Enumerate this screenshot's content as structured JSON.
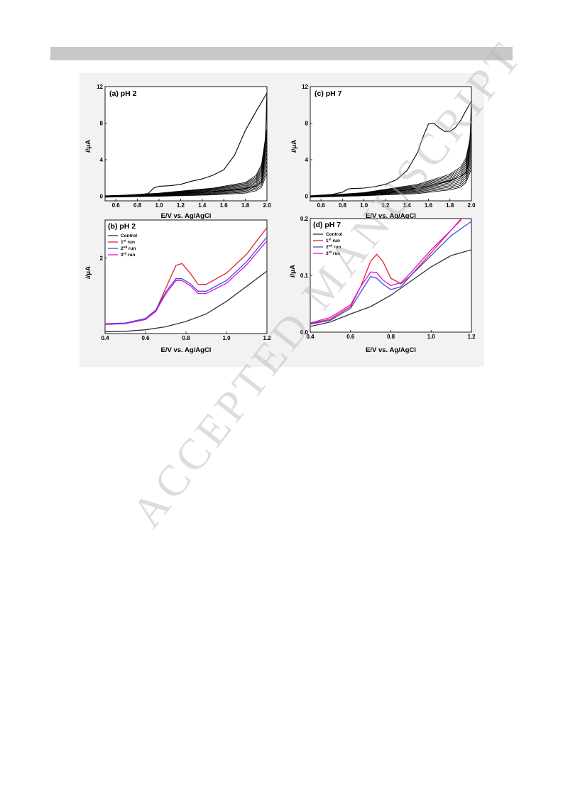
{
  "watermark": "ACCEPTED MANUSCRIPT",
  "colors": {
    "header_bar": "#c8c8c8",
    "control": "#333333",
    "run1": "#e8202a",
    "run2": "#3a4fe0",
    "run3": "#e010e0",
    "cv": "#000000"
  },
  "chart_data": [
    {
      "id": "a",
      "type": "line",
      "title": "(a) pH 2",
      "xlabel": "E/V vs. Ag/AgCl",
      "ylabel": "i/μA",
      "xlim": [
        0.5,
        2.0
      ],
      "ylim": [
        -0.5,
        12
      ],
      "xticks": [
        0.6,
        0.8,
        1.0,
        1.2,
        1.4,
        1.6,
        1.8,
        2.0
      ],
      "xtick_labels": [
        "0.6",
        "0.8",
        "1.0",
        "1.2",
        "1.4",
        "1.6",
        "1.8",
        "2.0"
      ],
      "yticks": [
        0,
        4,
        8,
        12
      ],
      "ytick_labels": [
        "0",
        "4",
        "8",
        "12"
      ],
      "series": [
        {
          "role": "first-scan-anodic",
          "x": [
            0.5,
            0.8,
            0.9,
            0.95,
            1.0,
            1.1,
            1.2,
            1.3,
            1.4,
            1.5,
            1.6,
            1.7,
            1.8,
            1.9,
            2.0
          ],
          "y": [
            0.05,
            0.15,
            0.3,
            0.9,
            1.1,
            1.15,
            1.3,
            1.65,
            1.9,
            2.3,
            2.9,
            4.5,
            7.2,
            9.3,
            11.3
          ]
        },
        {
          "role": "first-scan-return",
          "x": [
            2.0,
            1.99,
            1.97,
            1.95,
            1.9,
            1.8,
            1.6,
            1.4,
            1.2,
            1.0,
            0.8,
            0.5
          ],
          "y": [
            11.3,
            7.5,
            3.0,
            1.6,
            1.1,
            0.85,
            0.6,
            0.45,
            0.35,
            0.25,
            0.15,
            0.0
          ]
        },
        {
          "role": "repeated-scans-envelope-upper",
          "x": [
            0.5,
            1.0,
            1.5,
            1.8,
            1.9,
            1.95,
            2.0
          ],
          "y": [
            0.0,
            0.35,
            0.9,
            1.5,
            2.3,
            3.5,
            7.5
          ]
        },
        {
          "role": "repeated-scans-envelope-lower",
          "x": [
            0.5,
            1.0,
            1.5,
            1.8,
            1.9,
            1.95,
            2.0
          ],
          "y": [
            -0.1,
            0.0,
            0.15,
            0.35,
            0.6,
            1.0,
            2.5
          ]
        }
      ],
      "repeated_scans": 12
    },
    {
      "id": "c",
      "type": "line",
      "title": "(c) pH 7",
      "xlabel": "E/V vs. Ag/AgCl",
      "ylabel": "i/μA",
      "xlim": [
        0.5,
        2.0
      ],
      "ylim": [
        -0.5,
        12
      ],
      "xticks": [
        0.6,
        0.8,
        1.0,
        1.2,
        1.4,
        1.6,
        1.8,
        2.0
      ],
      "xtick_labels": [
        "0.6",
        "0.8",
        "1.0",
        "1.2",
        "1.4",
        "1.6",
        "1.8",
        "2.0"
      ],
      "yticks": [
        0,
        4,
        8,
        12
      ],
      "ytick_labels": [
        "0",
        "4",
        "8",
        "12"
      ],
      "series": [
        {
          "role": "first-scan-anodic",
          "x": [
            0.5,
            0.7,
            0.8,
            0.85,
            0.9,
            1.0,
            1.1,
            1.2,
            1.3,
            1.4,
            1.5,
            1.55,
            1.6,
            1.65,
            1.7,
            1.75,
            1.8,
            1.85,
            1.9,
            1.95,
            2.0
          ],
          "y": [
            0.05,
            0.2,
            0.45,
            0.8,
            0.85,
            0.9,
            1.05,
            1.3,
            1.8,
            2.8,
            4.8,
            6.5,
            7.9,
            8.0,
            7.5,
            7.1,
            7.1,
            7.5,
            8.3,
            9.4,
            10.4
          ]
        },
        {
          "role": "first-scan-return",
          "x": [
            2.0,
            1.99,
            1.97,
            1.95,
            1.9,
            1.8,
            1.6,
            1.4,
            1.2,
            1.0,
            0.8,
            0.5
          ],
          "y": [
            10.4,
            7.0,
            3.5,
            2.6,
            2.2,
            1.7,
            1.1,
            0.7,
            0.45,
            0.3,
            0.15,
            0.0
          ]
        },
        {
          "role": "repeated-scans-envelope-upper",
          "x": [
            0.5,
            1.0,
            1.5,
            1.8,
            1.9,
            1.95,
            2.0
          ],
          "y": [
            0.0,
            0.4,
            1.3,
            2.4,
            3.2,
            4.2,
            7.0
          ]
        },
        {
          "role": "repeated-scans-envelope-lower",
          "x": [
            0.5,
            1.0,
            1.5,
            1.8,
            1.9,
            1.95,
            2.0
          ],
          "y": [
            -0.1,
            0.05,
            0.3,
            0.7,
            1.0,
            1.5,
            3.0
          ]
        }
      ],
      "repeated_scans": 12
    },
    {
      "id": "b",
      "type": "line",
      "title": "(b) pH 2",
      "xlabel": "E/V vs. Ag/AgCl",
      "ylabel": "i/μA",
      "xlim": [
        0.4,
        1.2
      ],
      "ylim": [
        0,
        3
      ],
      "xticks": [
        0.4,
        0.6,
        0.8,
        1.0,
        1.2
      ],
      "xtick_labels": [
        "0.4",
        "0.6",
        "0.8",
        "1.0",
        "1.2"
      ],
      "yticks": [
        2
      ],
      "ytick_labels": [
        "2"
      ],
      "legend": {
        "position": "top-left",
        "entries": [
          {
            "label": "Control",
            "sup": ""
          },
          {
            "label": "1",
            "sup": "st",
            "suffix": " run"
          },
          {
            "label": "2",
            "sup": "nd",
            "suffix": " run"
          },
          {
            "label": "3",
            "sup": "rd",
            "suffix": " run"
          }
        ]
      },
      "series": [
        {
          "name": "Control",
          "x": [
            0.4,
            0.5,
            0.6,
            0.7,
            0.8,
            0.9,
            1.0,
            1.1,
            1.2
          ],
          "y": [
            0.05,
            0.06,
            0.1,
            0.18,
            0.32,
            0.52,
            0.85,
            1.25,
            1.65
          ]
        },
        {
          "name": "1st run",
          "x": [
            0.4,
            0.5,
            0.6,
            0.65,
            0.7,
            0.75,
            0.78,
            0.82,
            0.86,
            0.9,
            1.0,
            1.1,
            1.2
          ],
          "y": [
            0.25,
            0.27,
            0.38,
            0.6,
            1.2,
            1.8,
            1.85,
            1.6,
            1.3,
            1.3,
            1.6,
            2.1,
            2.8
          ]
        },
        {
          "name": "2nd run",
          "x": [
            0.4,
            0.5,
            0.6,
            0.65,
            0.7,
            0.75,
            0.78,
            0.82,
            0.86,
            0.9,
            1.0,
            1.1,
            1.2
          ],
          "y": [
            0.26,
            0.28,
            0.4,
            0.62,
            1.1,
            1.45,
            1.45,
            1.32,
            1.12,
            1.12,
            1.4,
            1.9,
            2.55
          ]
        },
        {
          "name": "3rd run",
          "x": [
            0.4,
            0.5,
            0.6,
            0.65,
            0.7,
            0.75,
            0.78,
            0.82,
            0.86,
            0.9,
            1.0,
            1.1,
            1.2
          ],
          "y": [
            0.24,
            0.26,
            0.37,
            0.58,
            1.05,
            1.4,
            1.4,
            1.27,
            1.06,
            1.06,
            1.33,
            1.82,
            2.45
          ]
        }
      ]
    },
    {
      "id": "d",
      "type": "line",
      "title": "(d) pH 7",
      "xlabel": "E/V vs. Ag/AgCl",
      "ylabel": "i/μA",
      "xlim": [
        0.4,
        1.2
      ],
      "ylim": [
        0,
        0.2
      ],
      "xticks": [
        0.4,
        0.6,
        0.8,
        1.0,
        1.2
      ],
      "xtick_labels": [
        "0.4",
        "0.6",
        "0.8",
        "1.0",
        "1.2"
      ],
      "yticks": [
        0.0,
        0.1,
        0.2
      ],
      "ytick_labels": [
        "0.0",
        "0.1",
        "0.2"
      ],
      "legend": {
        "position": "top-left",
        "entries": [
          {
            "label": "Control",
            "sup": ""
          },
          {
            "label": "1",
            "sup": "st",
            "suffix": " run"
          },
          {
            "label": "2",
            "sup": "nd",
            "suffix": " run"
          },
          {
            "label": "3",
            "sup": "rd",
            "suffix": " run"
          }
        ]
      },
      "series": [
        {
          "name": "Control",
          "x": [
            0.4,
            0.5,
            0.6,
            0.7,
            0.8,
            0.9,
            1.0,
            1.1,
            1.2
          ],
          "y": [
            0.01,
            0.018,
            0.032,
            0.045,
            0.065,
            0.09,
            0.115,
            0.135,
            0.145
          ]
        },
        {
          "name": "1st run",
          "x": [
            0.4,
            0.5,
            0.6,
            0.65,
            0.7,
            0.73,
            0.76,
            0.8,
            0.85,
            0.9,
            1.0,
            1.1,
            1.15
          ],
          "y": [
            0.015,
            0.023,
            0.045,
            0.08,
            0.125,
            0.137,
            0.125,
            0.095,
            0.085,
            0.1,
            0.14,
            0.18,
            0.2
          ]
        },
        {
          "name": "2nd run",
          "x": [
            0.4,
            0.5,
            0.6,
            0.65,
            0.7,
            0.73,
            0.76,
            0.8,
            0.85,
            0.9,
            1.0,
            1.1,
            1.2
          ],
          "y": [
            0.014,
            0.021,
            0.042,
            0.07,
            0.098,
            0.095,
            0.085,
            0.075,
            0.08,
            0.1,
            0.135,
            0.17,
            0.195
          ]
        },
        {
          "name": "3rd run",
          "x": [
            0.4,
            0.5,
            0.6,
            0.65,
            0.7,
            0.73,
            0.76,
            0.8,
            0.85,
            0.9,
            1.0,
            1.1,
            1.15
          ],
          "y": [
            0.016,
            0.026,
            0.048,
            0.08,
            0.106,
            0.105,
            0.092,
            0.082,
            0.087,
            0.105,
            0.145,
            0.18,
            0.198
          ]
        }
      ]
    }
  ]
}
